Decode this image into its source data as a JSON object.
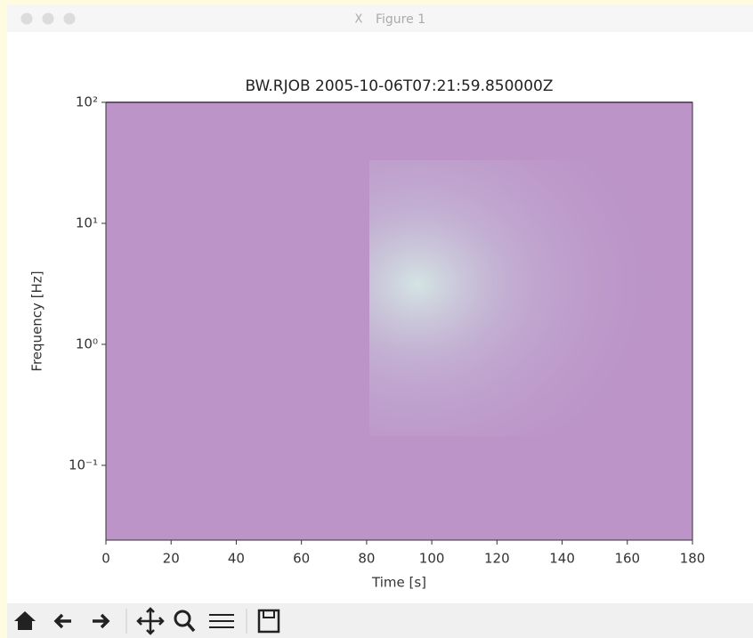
{
  "window": {
    "title": "Figure 1"
  },
  "chart_data": {
    "type": "spectrogram",
    "title": "BW.RJOB 2005-10-06T07:21:59.850000Z",
    "xlabel": "Time [s]",
    "ylabel": "Frequency [Hz]",
    "xlim": [
      0,
      180
    ],
    "ylim": [
      0.0241,
      100
    ],
    "yscale": "log",
    "xticks": [
      0,
      20,
      40,
      60,
      80,
      100,
      120,
      140,
      160,
      180
    ],
    "yticks": [
      {
        "value": 0.1,
        "label": "10⁻¹"
      },
      {
        "value": 1,
        "label": "10⁰"
      },
      {
        "value": 10,
        "label": "10¹"
      },
      {
        "value": 100,
        "label": "10²"
      }
    ],
    "color": "#bc94c8"
  }
}
